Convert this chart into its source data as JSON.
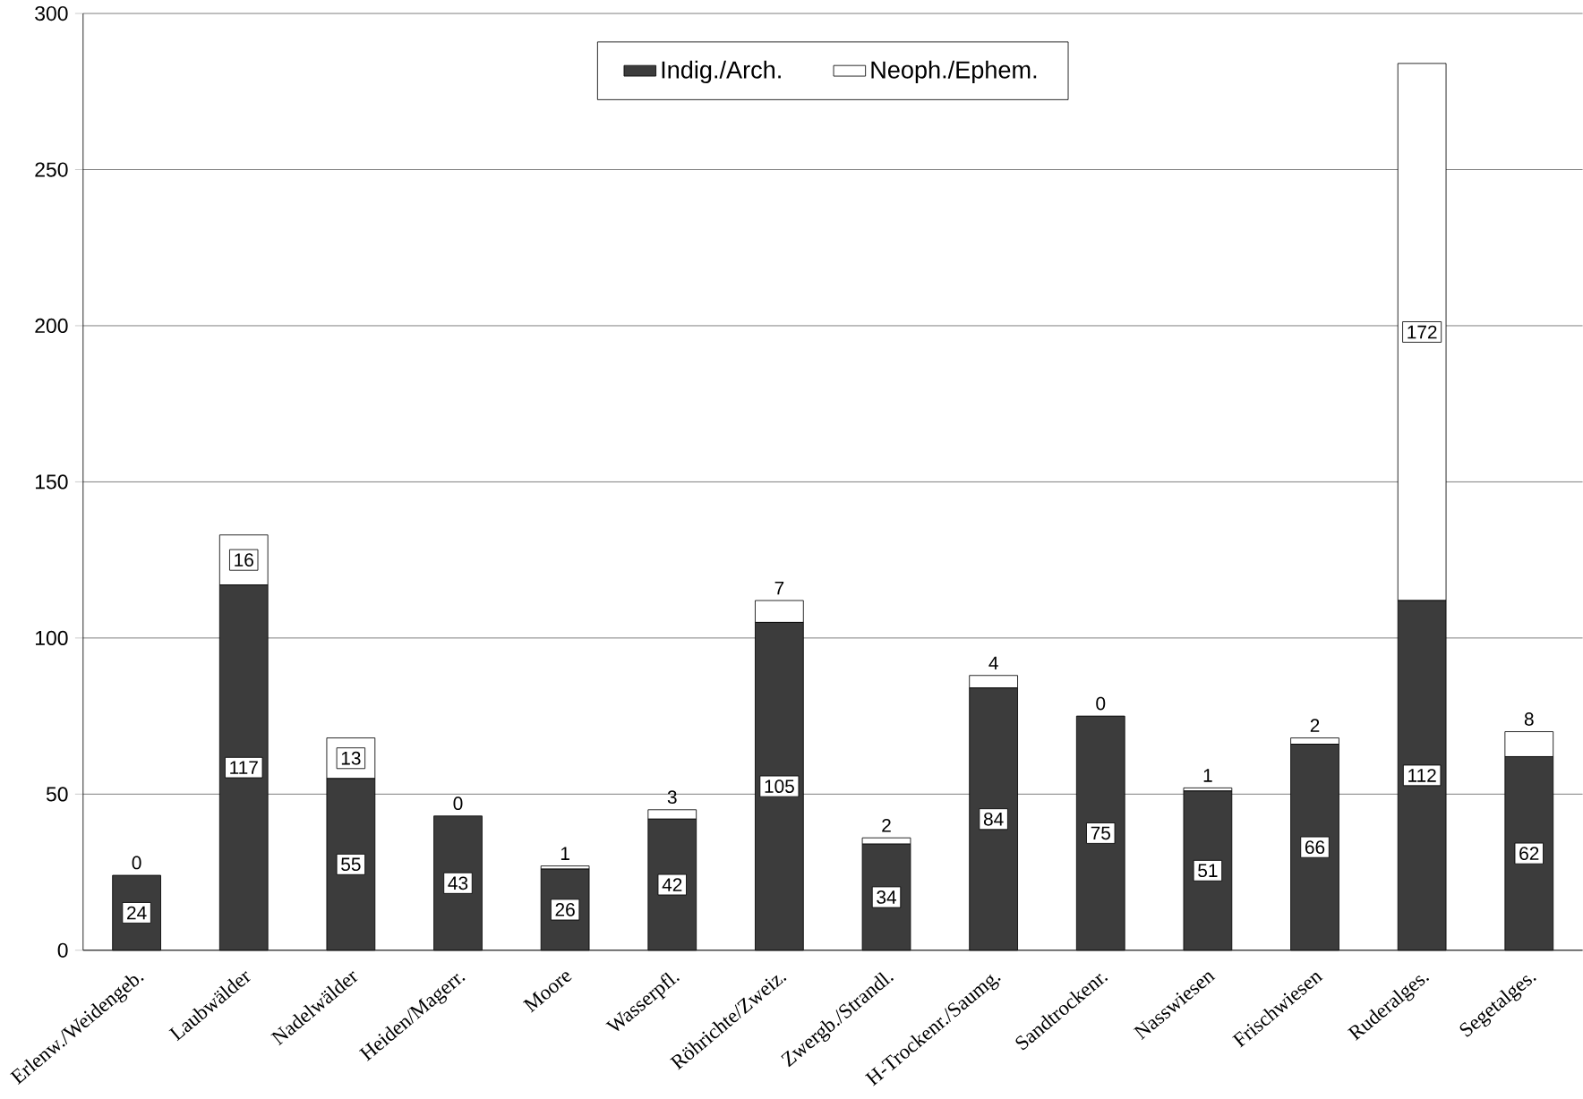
{
  "chart_data": {
    "type": "bar",
    "stacked": true,
    "categories": [
      "Erlenw./Weidengeb.",
      "Laubwälder",
      "Nadelwälder",
      "Heiden/Magerr.",
      "Moore",
      "Wasserpfl.",
      "Röhrichte/Zweiz.",
      "Zwergb./Strandl.",
      "H-Trockenr./Saumg.",
      "Sandtrockenr.",
      "Nasswiesen",
      "Frischwiesen",
      "Ruderalges.",
      "Segetalges."
    ],
    "series": [
      {
        "name": "Indig./Arch.",
        "color": "#3c3c3c",
        "values": [
          24,
          117,
          55,
          43,
          26,
          42,
          105,
          34,
          84,
          75,
          51,
          66,
          112,
          62
        ]
      },
      {
        "name": "Neoph./Ephem.",
        "color": "#ffffff",
        "values": [
          0,
          16,
          13,
          0,
          1,
          3,
          7,
          2,
          4,
          0,
          1,
          2,
          172,
          8
        ]
      }
    ],
    "ylim": [
      0,
      300
    ],
    "yticks": [
      0,
      50,
      100,
      150,
      200,
      250,
      300
    ],
    "grid": "y",
    "legend": "top",
    "data_labels": true
  }
}
